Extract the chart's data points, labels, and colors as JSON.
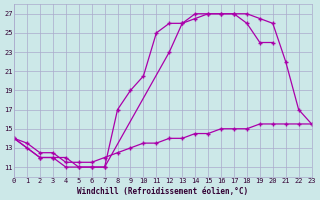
{
  "xlabel": "Windchill (Refroidissement éolien,°C)",
  "xlim": [
    0,
    23
  ],
  "ylim": [
    10,
    28
  ],
  "xticks": [
    0,
    1,
    2,
    3,
    4,
    5,
    6,
    7,
    8,
    9,
    10,
    11,
    12,
    13,
    14,
    15,
    16,
    17,
    18,
    19,
    20,
    21,
    22,
    23
  ],
  "yticks": [
    11,
    13,
    15,
    17,
    19,
    21,
    23,
    25,
    27
  ],
  "background_color": "#cce8e8",
  "grid_color": "#aaaacc",
  "line_color": "#aa00aa",
  "curve1_x": [
    0,
    1,
    2,
    3,
    4,
    5,
    6,
    7,
    12,
    13,
    14,
    15,
    16,
    17,
    18,
    19,
    20,
    21,
    22,
    23
  ],
  "curve1_y": [
    14,
    13,
    12,
    12,
    11,
    11,
    11,
    11,
    23,
    26,
    26.5,
    27,
    27,
    27,
    27,
    26.5,
    26,
    22,
    17,
    15.5
  ],
  "curve2_x": [
    0,
    1,
    2,
    3,
    4,
    5,
    6,
    7,
    8,
    9,
    10,
    11,
    12,
    13,
    14,
    15,
    16,
    17,
    18,
    19,
    20,
    21,
    22,
    23
  ],
  "curve2_y": [
    14,
    13.5,
    12.5,
    12.5,
    11.5,
    11.5,
    11.5,
    12,
    12.5,
    13,
    13.5,
    13.5,
    14,
    14,
    14.5,
    14.5,
    15,
    15,
    15,
    15.5,
    15.5,
    15.5,
    15.5,
    15.5
  ],
  "curve3_x": [
    0,
    2,
    3,
    4,
    5,
    6,
    7,
    8,
    9,
    10,
    11,
    12,
    13,
    14,
    15,
    16,
    17,
    18,
    19,
    20
  ],
  "curve3_y": [
    14,
    12,
    12,
    12,
    11,
    11,
    11,
    17,
    19,
    20.5,
    25,
    26,
    26,
    27,
    27,
    27,
    27,
    26,
    24,
    24
  ]
}
